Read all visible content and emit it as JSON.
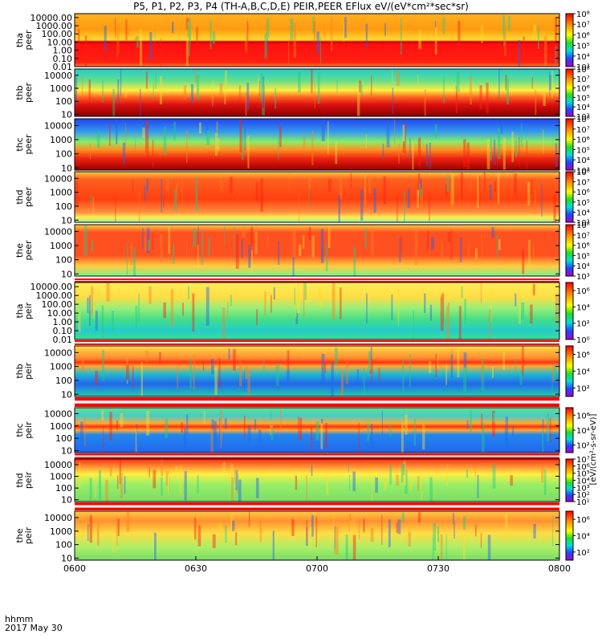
{
  "title": "P5, P1, P2, P3, P4 (TH-A,B,C,D,E) PEIR,PEER EFlux eV/(eV*cm²*sec*sr)",
  "footer": {
    "time_label": "hhmm",
    "date_label": "2017 May 30"
  },
  "chart_data": {
    "type": "heatmap",
    "x": {
      "ticks": [
        "0600",
        "0630",
        "0700",
        "0730",
        "0800"
      ],
      "range": [
        "06:00",
        "08:00"
      ]
    },
    "colorbar_title": "[eV/(cm²-s-sr-eV)]",
    "panels": [
      {
        "name": "tha",
        "kind": "peer",
        "ylabel": [
          "tha",
          "peer"
        ],
        "yticks": [
          "10000.00",
          "1000.00",
          "100.00",
          "10.00",
          "1.00",
          "0.10",
          "0.01"
        ],
        "yrange": [
          0.01,
          30000
        ],
        "ylog": true,
        "colorbar_ticks": [
          "10⁸",
          "10⁷",
          "10⁶",
          "10⁵",
          "10⁴",
          "10³"
        ],
        "colorbar_range": [
          1000,
          100000000
        ]
      },
      {
        "name": "thb",
        "kind": "peer",
        "ylabel": [
          "thb",
          "peer"
        ],
        "yticks": [
          "10000",
          "1000",
          "100",
          "10"
        ],
        "yrange": [
          7,
          30000
        ],
        "ylog": true,
        "colorbar_ticks": [
          "10⁸",
          "10⁷",
          "10⁶",
          "10⁵",
          "10⁴",
          "10³"
        ],
        "colorbar_range": [
          1000,
          100000000
        ]
      },
      {
        "name": "thc",
        "kind": "peer",
        "ylabel": [
          "thc",
          "peer"
        ],
        "yticks": [
          "10000",
          "1000",
          "100",
          "10"
        ],
        "yrange": [
          7,
          30000
        ],
        "ylog": true,
        "colorbar_ticks": [
          "10⁸",
          "10⁷",
          "10⁶",
          "10⁵",
          "10⁴",
          "10³"
        ],
        "colorbar_range": [
          1000,
          100000000
        ]
      },
      {
        "name": "thd",
        "kind": "peer",
        "ylabel": [
          "thd",
          "peer"
        ],
        "yticks": [
          "10000",
          "1000",
          "100",
          "10"
        ],
        "yrange": [
          7,
          30000
        ],
        "ylog": true,
        "colorbar_ticks": [
          "10⁸",
          "10⁷",
          "10⁶",
          "10⁵",
          "10⁴",
          "10³"
        ],
        "colorbar_range": [
          1000,
          100000000
        ]
      },
      {
        "name": "the",
        "kind": "peer",
        "ylabel": [
          "the",
          "peer"
        ],
        "yticks": [
          "10000",
          "1000",
          "100",
          "10"
        ],
        "yrange": [
          7,
          30000
        ],
        "ylog": true,
        "colorbar_ticks": [
          "10⁸",
          "10⁷",
          "10⁶",
          "10⁵",
          "10⁴",
          "10³"
        ],
        "colorbar_range": [
          1000,
          100000000
        ]
      },
      {
        "name": "tha",
        "kind": "peir",
        "ylabel": [
          "tha",
          "peir"
        ],
        "yticks": [
          "10000.00",
          "1000.00",
          "100.00",
          "10.00",
          "1.00",
          "0.10",
          "0.01"
        ],
        "yrange": [
          0.01,
          30000
        ],
        "ylog": true,
        "colorbar_ticks": [
          "10⁶",
          "10⁴",
          "10²",
          "10⁰"
        ],
        "colorbar_range": [
          1,
          10000000
        ]
      },
      {
        "name": "thb",
        "kind": "peir",
        "ylabel": [
          "thb",
          "peir"
        ],
        "yticks": [
          "10000",
          "1000",
          "100",
          "10"
        ],
        "yrange": [
          7,
          30000
        ],
        "ylog": true,
        "colorbar_ticks": [
          "10⁶",
          "10⁴",
          "10²"
        ],
        "colorbar_range": [
          10,
          10000000
        ]
      },
      {
        "name": "thc",
        "kind": "peir",
        "ylabel": [
          "thc",
          "peir"
        ],
        "yticks": [
          "10000",
          "1000",
          "100",
          "10"
        ],
        "yrange": [
          7,
          30000
        ],
        "ylog": true,
        "colorbar_ticks": [
          "10⁶",
          "10⁴",
          "10²"
        ],
        "colorbar_range": [
          10,
          10000000
        ]
      },
      {
        "name": "thd",
        "kind": "peir",
        "ylabel": [
          "thd",
          "peir"
        ],
        "yticks": [
          "10000",
          "1000",
          "100",
          "10"
        ],
        "yrange": [
          7,
          30000
        ],
        "ylog": true,
        "colorbar_ticks": [
          "10⁷",
          "10⁶",
          "10⁵",
          "10⁴",
          "10³",
          "10²",
          "10¹"
        ],
        "colorbar_range": [
          10,
          10000000
        ]
      },
      {
        "name": "the",
        "kind": "peir",
        "ylabel": [
          "the",
          "peir"
        ],
        "yticks": [
          "10000",
          "1000",
          "100",
          "10"
        ],
        "yrange": [
          7,
          30000
        ],
        "ylog": true,
        "colorbar_ticks": [
          "10⁶",
          "10⁴",
          "10²"
        ],
        "colorbar_range": [
          10,
          10000000
        ]
      }
    ]
  }
}
